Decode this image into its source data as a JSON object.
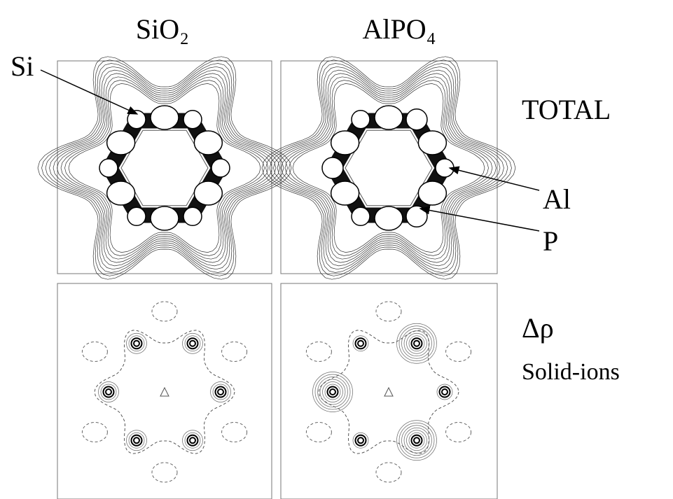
{
  "columns": {
    "left": "SiO₂",
    "right": "AlPO₄"
  },
  "labels": {
    "si": "Si",
    "al": "Al",
    "p": "P"
  },
  "rows": {
    "top": "TOTAL",
    "bottom_symbol": "Δρ",
    "bottom_text": "Solid-ions"
  }
}
